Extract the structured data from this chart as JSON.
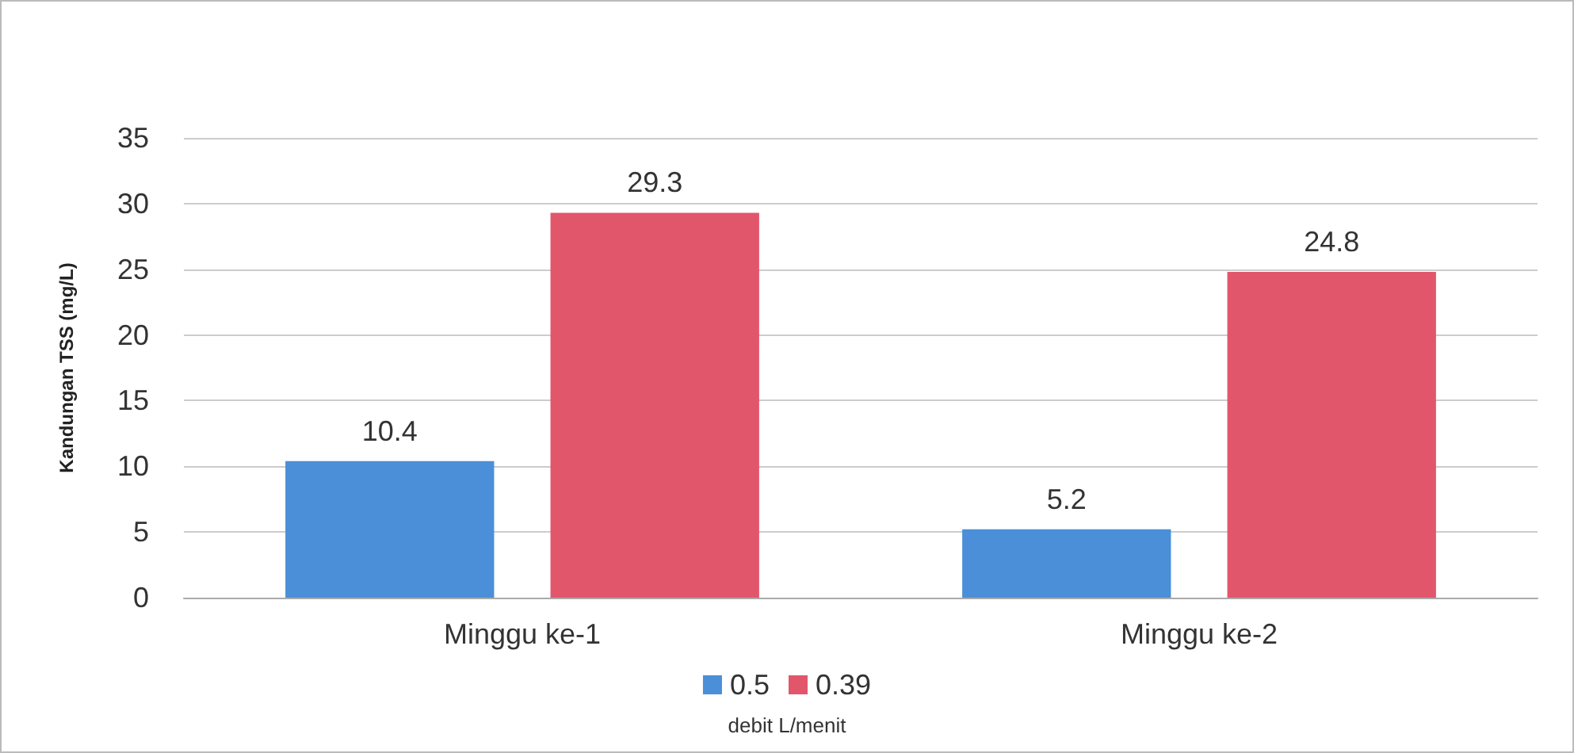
{
  "chart_data": {
    "type": "bar",
    "ylabel": "Kandungan TSS (mg/L)",
    "legend_title": "debit L/menit",
    "categories": [
      "Minggu ke-1",
      "Minggu ke-2"
    ],
    "series": [
      {
        "name": "0.5",
        "color": "#4a8fd8",
        "values": [
          10.4,
          5.2
        ]
      },
      {
        "name": "0.39",
        "color": "#e2566c",
        "values": [
          29.3,
          24.8
        ]
      }
    ],
    "ylim": [
      0,
      35
    ],
    "yticks": [
      0,
      5,
      10,
      15,
      20,
      25,
      30,
      35
    ],
    "grid": "y",
    "legend": "bottom",
    "data_labels": true
  }
}
